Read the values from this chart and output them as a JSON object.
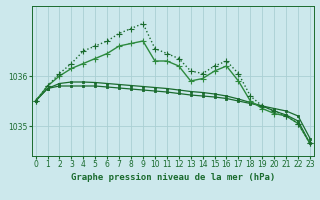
{
  "xlabel": "Graphe pression niveau de la mer (hPa)",
  "bg_color": "#cce8ec",
  "grid_color": "#aacfd4",
  "hours": [
    0,
    1,
    2,
    3,
    4,
    5,
    6,
    7,
    8,
    9,
    10,
    11,
    12,
    13,
    14,
    15,
    16,
    17,
    18,
    19,
    20,
    21,
    22,
    23
  ],
  "series": [
    [
      1035.5,
      1035.75,
      1035.8,
      1035.8,
      1035.8,
      1035.8,
      1035.78,
      1035.76,
      1035.74,
      1035.72,
      1035.7,
      1035.68,
      1035.65,
      1035.62,
      1035.6,
      1035.58,
      1035.55,
      1035.5,
      1035.45,
      1035.4,
      1035.35,
      1035.3,
      1035.2,
      1034.75
    ],
    [
      1035.5,
      1035.75,
      1035.85,
      1035.88,
      1035.88,
      1035.87,
      1035.85,
      1035.83,
      1035.81,
      1035.79,
      1035.77,
      1035.75,
      1035.72,
      1035.69,
      1035.67,
      1035.64,
      1035.6,
      1035.54,
      1035.47,
      1035.4,
      1035.3,
      1035.22,
      1035.1,
      1034.65
    ],
    [
      1035.5,
      1035.8,
      1036.0,
      1036.15,
      1036.25,
      1036.35,
      1036.45,
      1036.6,
      1036.65,
      1036.7,
      1036.3,
      1036.3,
      1036.2,
      1035.9,
      1035.95,
      1036.1,
      1036.2,
      1035.9,
      1035.5,
      1035.35,
      1035.25,
      1035.2,
      1035.05,
      1034.65
    ],
    [
      1035.5,
      1035.8,
      1036.05,
      1036.25,
      1036.5,
      1036.6,
      1036.7,
      1036.85,
      1036.95,
      1037.05,
      1036.55,
      1036.45,
      1036.35,
      1036.1,
      1036.05,
      1036.2,
      1036.3,
      1036.05,
      1035.6,
      1035.4,
      1035.3,
      1035.2,
      1035.05,
      1034.65
    ]
  ],
  "series_styles": [
    {
      "color": "#1a6b2e",
      "lw": 0.9,
      "ls": "-",
      "marker": "s",
      "ms": 2.0,
      "mew": 0.6
    },
    {
      "color": "#1a6b2e",
      "lw": 0.9,
      "ls": "-",
      "marker": "s",
      "ms": 2.0,
      "mew": 0.6
    },
    {
      "color": "#2d8a3e",
      "lw": 1.0,
      "ls": "-",
      "marker": "+",
      "ms": 4.0,
      "mew": 0.8
    },
    {
      "color": "#1a6b2e",
      "lw": 1.0,
      "ls": ":",
      "marker": "+",
      "ms": 4.0,
      "mew": 0.8
    }
  ],
  "ylim": [
    1034.4,
    1037.4
  ],
  "yticks": [
    1035.0,
    1036.0
  ],
  "ytick_labels": [
    "1035",
    "1036"
  ],
  "xlim": [
    -0.3,
    23.3
  ],
  "xticks": [
    0,
    1,
    2,
    3,
    4,
    5,
    6,
    7,
    8,
    9,
    10,
    11,
    12,
    13,
    14,
    15,
    16,
    17,
    18,
    19,
    20,
    21,
    22,
    23
  ],
  "tick_fontsize": 5.5,
  "xlabel_fontsize": 6.5,
  "line_color": "#1a6b2e"
}
